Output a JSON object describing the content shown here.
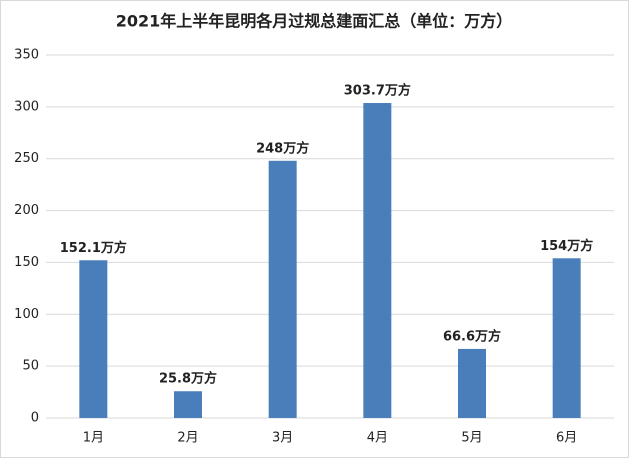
{
  "chart_data": {
    "type": "bar",
    "title": "2021年上半年昆明各月过规总建面汇总（单位：万方）",
    "categories": [
      "1月",
      "2月",
      "3月",
      "4月",
      "5月",
      "6月"
    ],
    "values": [
      152.1,
      25.8,
      248,
      303.7,
      66.6,
      154
    ],
    "value_labels": [
      "152.1万方",
      "25.8万方",
      "248万方",
      "303.7万方",
      "66.6万方",
      "154万方"
    ],
    "color": "#4a7ebb",
    "ylim": [
      0,
      350
    ],
    "yticks": [
      0,
      50,
      100,
      150,
      200,
      250,
      300,
      350
    ],
    "grid": true
  }
}
